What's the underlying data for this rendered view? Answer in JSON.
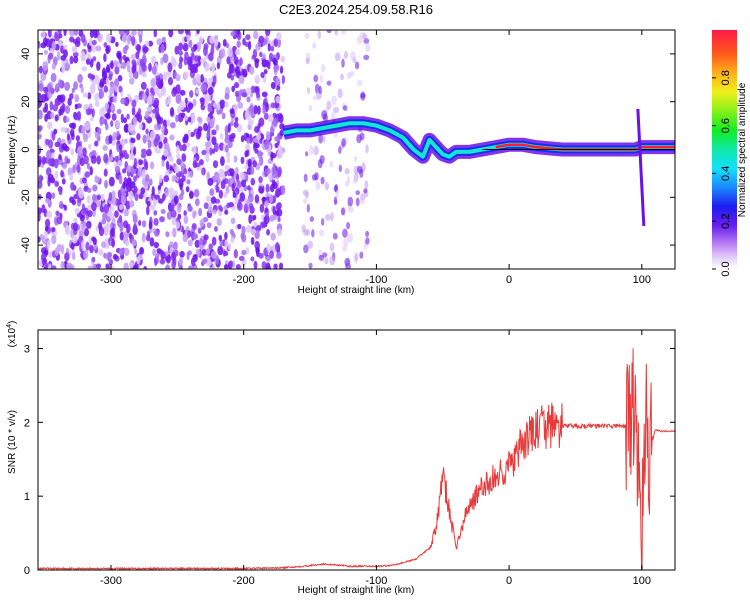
{
  "title": "C2E3.2024.254.09.58.R16",
  "chart_data": [
    {
      "type": "heatmap",
      "xlabel": "Height of straight line (km)",
      "ylabel": "Frequency (Hz)",
      "xlim": [
        -355,
        125
      ],
      "ylim": [
        -50,
        50
      ],
      "x_ticks": [
        -300,
        -200,
        -100,
        0,
        100
      ],
      "y_ticks": [
        -40,
        -20,
        0,
        20,
        40
      ],
      "colorbar": {
        "label": "Normalized spectral amplitude",
        "ticks": [
          "0.0",
          "0.2",
          "0.4",
          "0.6",
          "0.8"
        ],
        "tick_values": [
          0,
          0.2,
          0.4,
          0.6,
          0.8
        ],
        "range": [
          0,
          1
        ]
      },
      "regions": [
        {
          "name": "noise",
          "x_range": [
            -355,
            -170
          ],
          "y_range": [
            -50,
            50
          ]
        },
        {
          "name": "sparse noise",
          "x_range": [
            -155,
            -105
          ],
          "y_range": [
            -50,
            50
          ]
        }
      ],
      "ridge": {
        "x": [
          -170,
          -160,
          -150,
          -140,
          -130,
          -120,
          -110,
          -100,
          -90,
          -80,
          -72,
          -65,
          -60,
          -55,
          -50,
          -45,
          -40,
          -35,
          -30,
          -20,
          -10,
          0,
          10,
          20,
          40,
          60,
          80,
          95,
          100,
          110,
          125
        ],
        "y": [
          7,
          8,
          8,
          9,
          10,
          11,
          11,
          10,
          8,
          5,
          0,
          -3,
          4,
          1,
          -2,
          -3,
          -1,
          -1,
          -1,
          0,
          1,
          2,
          2,
          1,
          0,
          0,
          0,
          0,
          1,
          1,
          1
        ]
      },
      "spike": {
        "x": 97,
        "y_range": [
          -32,
          17
        ]
      }
    },
    {
      "type": "line",
      "xlabel": "Height of straight line (km)",
      "ylabel": "SNR (10 * v/v)",
      "y_multiplier": "(x10",
      "y_multiplier_exp": "4",
      "y_multiplier_close": ")",
      "xlim": [
        -355,
        125
      ],
      "ylim": [
        0,
        3.25
      ],
      "x_ticks": [
        -300,
        -200,
        -100,
        0,
        100
      ],
      "y_ticks": [
        0,
        1,
        2,
        3
      ],
      "series": [
        {
          "color": "#e83a3a",
          "x": [
            -355,
            -300,
            -250,
            -200,
            -170,
            -150,
            -140,
            -130,
            -120,
            -110,
            -100,
            -90,
            -80,
            -70,
            -60,
            -55,
            -50,
            -45,
            -40,
            -35,
            -30,
            -25,
            -20,
            -15,
            -10,
            -5,
            0,
            5,
            10,
            20,
            30,
            40,
            50,
            60,
            70,
            80,
            90,
            95,
            97,
            100,
            103,
            105,
            110,
            115,
            125
          ],
          "y": [
            0.02,
            0.02,
            0.02,
            0.02,
            0.03,
            0.06,
            0.08,
            0.07,
            0.05,
            0.05,
            0.05,
            0.06,
            0.1,
            0.15,
            0.3,
            0.55,
            1.3,
            0.8,
            0.3,
            0.6,
            0.9,
            1.0,
            1.1,
            1.2,
            1.25,
            1.35,
            1.4,
            1.5,
            1.7,
            1.9,
            1.95,
            1.95,
            1.95,
            1.95,
            1.95,
            1.95,
            1.95,
            2.2,
            1.5,
            0.2,
            2.4,
            1.5,
            1.9,
            1.88,
            1.88
          ]
        }
      ]
    }
  ]
}
